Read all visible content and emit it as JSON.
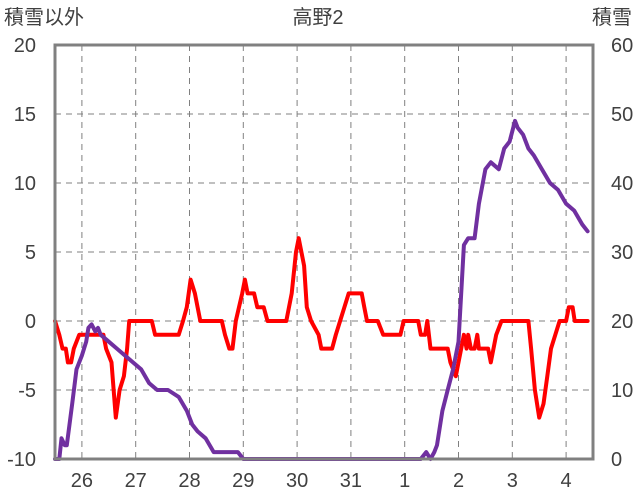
{
  "chart_data": {
    "type": "line",
    "title": "高野2",
    "ylabel_left": "積雪以外",
    "ylabel_right": "積雪",
    "x_categories": [
      "26",
      "27",
      "28",
      "29",
      "30",
      "31",
      "1",
      "2",
      "3",
      "4"
    ],
    "x_range": [
      25.5,
      35.5
    ],
    "ylim_left": [
      -10,
      20
    ],
    "yticks_left": [
      -10,
      -5,
      0,
      5,
      10,
      15,
      20
    ],
    "ylim_right": [
      0,
      60
    ],
    "yticks_right": [
      0,
      10,
      20,
      30,
      40,
      50,
      60
    ],
    "grid": true,
    "series": [
      {
        "axis": "left",
        "color": "#ff0000",
        "points": [
          [
            25.5,
            0
          ],
          [
            25.58,
            -1
          ],
          [
            25.64,
            -2
          ],
          [
            25.7,
            -2
          ],
          [
            25.74,
            -3
          ],
          [
            25.8,
            -3
          ],
          [
            25.85,
            -2
          ],
          [
            25.95,
            -1
          ],
          [
            26.2,
            -1
          ],
          [
            26.3,
            -1
          ],
          [
            26.4,
            -1
          ],
          [
            26.45,
            -2
          ],
          [
            26.55,
            -3
          ],
          [
            26.63,
            -7
          ],
          [
            26.7,
            -5
          ],
          [
            26.78,
            -4
          ],
          [
            26.84,
            -2
          ],
          [
            26.88,
            0
          ],
          [
            27.3,
            0
          ],
          [
            27.36,
            -1
          ],
          [
            27.8,
            -1
          ],
          [
            27.88,
            0
          ],
          [
            27.95,
            1
          ],
          [
            28.02,
            3
          ],
          [
            28.1,
            2
          ],
          [
            28.15,
            1
          ],
          [
            28.2,
            0
          ],
          [
            28.6,
            0
          ],
          [
            28.66,
            -1
          ],
          [
            28.74,
            -2
          ],
          [
            28.8,
            -2
          ],
          [
            28.86,
            0
          ],
          [
            28.92,
            1
          ],
          [
            28.98,
            2
          ],
          [
            29.03,
            3
          ],
          [
            29.08,
            2
          ],
          [
            29.2,
            2
          ],
          [
            29.26,
            1
          ],
          [
            29.38,
            1
          ],
          [
            29.45,
            0
          ],
          [
            29.8,
            0
          ],
          [
            29.9,
            2
          ],
          [
            29.98,
            5
          ],
          [
            30.03,
            6
          ],
          [
            30.08,
            5
          ],
          [
            30.13,
            4
          ],
          [
            30.18,
            1
          ],
          [
            30.26,
            0
          ],
          [
            30.4,
            -1
          ],
          [
            30.45,
            -2
          ],
          [
            30.65,
            -2
          ],
          [
            30.72,
            -1
          ],
          [
            30.8,
            0
          ],
          [
            30.88,
            1
          ],
          [
            30.96,
            2
          ],
          [
            31.2,
            2
          ],
          [
            31.25,
            1
          ],
          [
            31.3,
            0
          ],
          [
            31.5,
            0
          ],
          [
            31.6,
            -1
          ],
          [
            31.92,
            -1
          ],
          [
            31.98,
            0
          ],
          [
            32.25,
            0
          ],
          [
            32.3,
            -1
          ],
          [
            32.38,
            -1
          ],
          [
            32.42,
            0
          ],
          [
            32.48,
            -2
          ],
          [
            32.8,
            -2
          ],
          [
            32.85,
            -3
          ],
          [
            32.95,
            -4
          ],
          [
            33.0,
            -3
          ],
          [
            33.05,
            -2
          ],
          [
            33.1,
            -1
          ],
          [
            33.15,
            -2
          ],
          [
            33.18,
            -1
          ],
          [
            33.23,
            -2
          ],
          [
            33.3,
            -2
          ],
          [
            33.35,
            -1
          ],
          [
            33.38,
            -2
          ],
          [
            33.55,
            -2
          ],
          [
            33.6,
            -3
          ],
          [
            33.65,
            -2
          ],
          [
            33.7,
            -1
          ],
          [
            33.8,
            0
          ],
          [
            34.3,
            0
          ],
          [
            34.35,
            -2
          ],
          [
            34.42,
            -5
          ],
          [
            34.5,
            -7
          ],
          [
            34.58,
            -6
          ],
          [
            34.65,
            -4
          ],
          [
            34.72,
            -2
          ],
          [
            34.8,
            -1
          ],
          [
            34.88,
            0
          ],
          [
            35.0,
            0
          ],
          [
            35.05,
            1
          ],
          [
            35.12,
            1
          ],
          [
            35.16,
            0
          ],
          [
            35.4,
            0
          ]
        ]
      },
      {
        "axis": "right",
        "color": "#7030a0",
        "points": [
          [
            25.5,
            0
          ],
          [
            25.58,
            0
          ],
          [
            25.62,
            3
          ],
          [
            25.68,
            2
          ],
          [
            25.72,
            2
          ],
          [
            25.82,
            8
          ],
          [
            25.9,
            13
          ],
          [
            26.0,
            15
          ],
          [
            26.08,
            17
          ],
          [
            26.12,
            19
          ],
          [
            26.18,
            19.5
          ],
          [
            26.25,
            18.5
          ],
          [
            26.3,
            19
          ],
          [
            26.35,
            18
          ],
          [
            26.5,
            17
          ],
          [
            26.65,
            16
          ],
          [
            26.8,
            15
          ],
          [
            26.95,
            14
          ],
          [
            27.1,
            13
          ],
          [
            27.25,
            11
          ],
          [
            27.4,
            10
          ],
          [
            27.6,
            10
          ],
          [
            27.8,
            9
          ],
          [
            27.95,
            7
          ],
          [
            28.05,
            5
          ],
          [
            28.15,
            4
          ],
          [
            28.3,
            3
          ],
          [
            28.45,
            1
          ],
          [
            28.9,
            1
          ],
          [
            29.0,
            0
          ],
          [
            32.3,
            0
          ],
          [
            32.4,
            1
          ],
          [
            32.48,
            0
          ],
          [
            32.55,
            1
          ],
          [
            32.6,
            2
          ],
          [
            32.7,
            7
          ],
          [
            32.8,
            10
          ],
          [
            32.9,
            13
          ],
          [
            33.0,
            17
          ],
          [
            33.1,
            31
          ],
          [
            33.18,
            32
          ],
          [
            33.3,
            32
          ],
          [
            33.38,
            37
          ],
          [
            33.5,
            42
          ],
          [
            33.6,
            43
          ],
          [
            33.75,
            42
          ],
          [
            33.85,
            45
          ],
          [
            33.95,
            46
          ],
          [
            34.05,
            49
          ],
          [
            34.1,
            48
          ],
          [
            34.2,
            47
          ],
          [
            34.3,
            45
          ],
          [
            34.4,
            44
          ],
          [
            34.55,
            42
          ],
          [
            34.7,
            40
          ],
          [
            34.85,
            39
          ],
          [
            35.0,
            37
          ],
          [
            35.15,
            36
          ],
          [
            35.3,
            34
          ],
          [
            35.4,
            33
          ]
        ]
      }
    ]
  }
}
